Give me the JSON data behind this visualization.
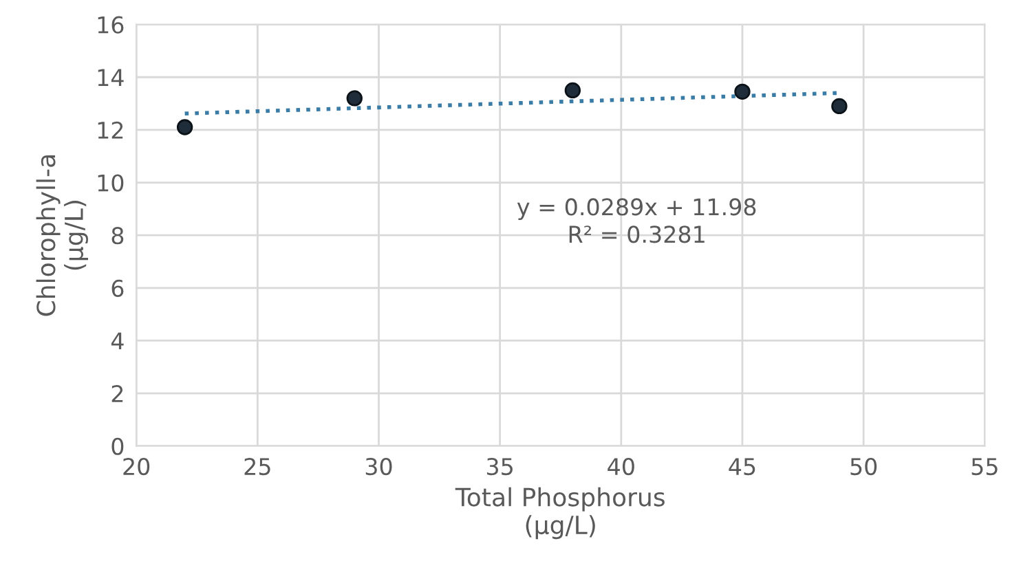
{
  "chart_data": {
    "type": "scatter",
    "xlabel": "Total Phosphorus\n(µg/L)",
    "ylabel": "Chlorophyll-a\n(µg/L)",
    "series": [
      {
        "color": "#1f2d3a",
        "marker": "circle",
        "x": [
          22,
          29,
          38,
          45,
          49
        ],
        "values": [
          12.1,
          13.2,
          13.5,
          13.45,
          12.9
        ]
      },
      {
        "type": "line",
        "color": "#3a7ca5",
        "marker": "none",
        "line_style": "dotted",
        "x": [
          22,
          49
        ],
        "values": [
          12.62,
          13.4
        ]
      }
    ],
    "annotations": [
      "y = 0.0289x + 11.98\nR² = 0.3281"
    ],
    "xlim": [
      20,
      55
    ],
    "xticks": [
      20,
      25,
      30,
      35,
      40,
      45,
      50,
      55
    ],
    "ylim": [
      0,
      16
    ],
    "yticks": [
      0,
      2,
      4,
      6,
      8,
      10,
      12,
      14,
      16
    ],
    "grid": true
  }
}
